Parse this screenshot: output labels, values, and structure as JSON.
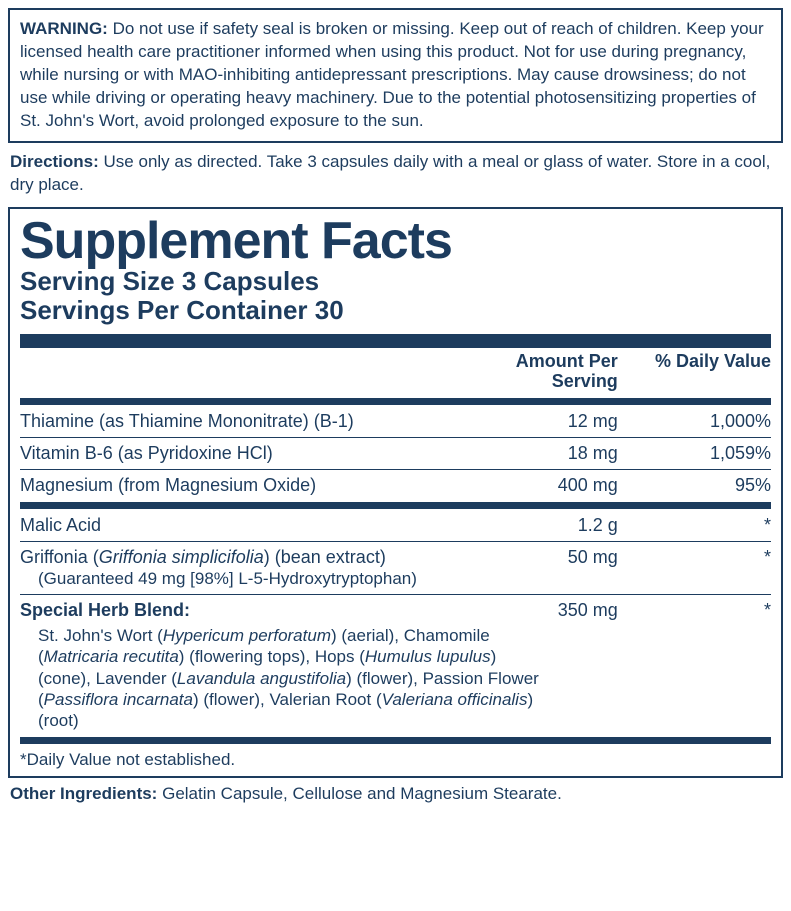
{
  "colors": {
    "primary": "#1d3c5e",
    "background": "#ffffff"
  },
  "warning": {
    "label": "WARNING:",
    "text": "Do not use if safety seal is broken or missing. Keep out of reach of children. Keep your licensed health care practitioner informed when using this product. Not for use during pregnancy, while nursing or with MAO-inhibiting antidepressant prescriptions. May cause drowsiness; do not use while driving or operating heavy machinery. Due to the potential photosensitizing properties of St. John's Wort, avoid prolonged exposure to the sun."
  },
  "directions": {
    "label": "Directions:",
    "text": "Use only as directed. Take 3 capsules daily with a meal or glass of water. Store in a cool, dry place."
  },
  "facts": {
    "title": "Supplement Facts",
    "serving_size": "Serving Size 3 Capsules",
    "servings_per": "Servings Per Container 30",
    "header_amount": "Amount Per Serving",
    "header_dv": "% Daily Value",
    "rows": [
      {
        "name": "Thiamine (as Thiamine Mononitrate) (B-1)",
        "amount": "12 mg",
        "dv": "1,000%"
      },
      {
        "name": "Vitamin B-6 (as Pyridoxine HCl)",
        "amount": "18 mg",
        "dv": "1,059%"
      },
      {
        "name": "Magnesium (from Magnesium Oxide)",
        "amount": "400 mg",
        "dv": "95%"
      }
    ],
    "malic": {
      "name": "Malic Acid",
      "amount": "1.2 g",
      "dv": "*"
    },
    "griffonia": {
      "line1_plain1": "Griffonia (",
      "line1_italic": "Griffonia simplicifolia",
      "line1_plain2": ") (bean extract)",
      "line2": "(Guaranteed 49 mg [98%] L-5-Hydroxytryptophan)",
      "amount": "50 mg",
      "dv": "*"
    },
    "herb": {
      "title": "Special Herb Blend:",
      "amount": "350 mg",
      "dv": "*",
      "p1a": "St. John's Wort (",
      "p1i": "Hypericum perforatum",
      "p1b": ") (aerial), Chamomile (",
      "p2i": "Matricaria recutita",
      "p2b": ") (flowering tops), Hops (",
      "p3i": "Humulus lupulus",
      "p3b": ") (cone), Lavender (",
      "p4i": "Lavandula angustifolia",
      "p4b": ") (flower), Passion Flower (",
      "p5i": "Passiflora incarnata",
      "p5b": ") (flower), Valerian Root (",
      "p6i": "Valeriana officinalis",
      "p6b": ") (root)"
    },
    "footnote": "*Daily Value not established."
  },
  "other": {
    "label": "Other Ingredients:",
    "text": "Gelatin Capsule, Cellulose and Magnesium Stearate."
  }
}
